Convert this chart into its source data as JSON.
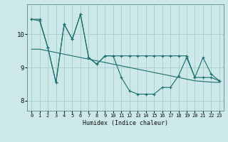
{
  "xlabel": "Humidex (Indice chaleur)",
  "ylabel": "",
  "background_color": "#cce8e8",
  "grid_color": "#aacccc",
  "line_color": "#1a6e6e",
  "xlim": [
    -0.5,
    23.5
  ],
  "ylim": [
    7.7,
    10.9
  ],
  "yticks": [
    8,
    9,
    10
  ],
  "xticks": [
    0,
    1,
    2,
    3,
    4,
    5,
    6,
    7,
    8,
    9,
    10,
    11,
    12,
    13,
    14,
    15,
    16,
    17,
    18,
    19,
    20,
    21,
    22,
    23
  ],
  "series1": [
    10.45,
    10.45,
    9.6,
    8.55,
    10.3,
    9.85,
    10.6,
    9.3,
    9.1,
    9.35,
    9.35,
    8.7,
    8.3,
    8.2,
    8.2,
    8.2,
    8.4,
    8.4,
    8.75,
    9.3,
    8.7,
    9.3,
    8.8,
    8.6
  ],
  "series2": [
    10.45,
    10.4,
    9.6,
    8.55,
    10.3,
    9.85,
    10.6,
    9.3,
    9.1,
    9.35,
    9.35,
    9.35,
    9.35,
    9.35,
    9.35,
    9.35,
    9.35,
    9.35,
    9.35,
    9.35,
    8.7,
    8.7,
    8.7,
    8.6
  ],
  "series3": [
    9.55,
    9.55,
    9.5,
    9.45,
    9.4,
    9.35,
    9.3,
    9.25,
    9.2,
    9.15,
    9.1,
    9.05,
    9.0,
    8.95,
    8.9,
    8.85,
    8.8,
    8.75,
    8.7,
    8.65,
    8.6,
    8.58,
    8.56,
    8.55
  ]
}
